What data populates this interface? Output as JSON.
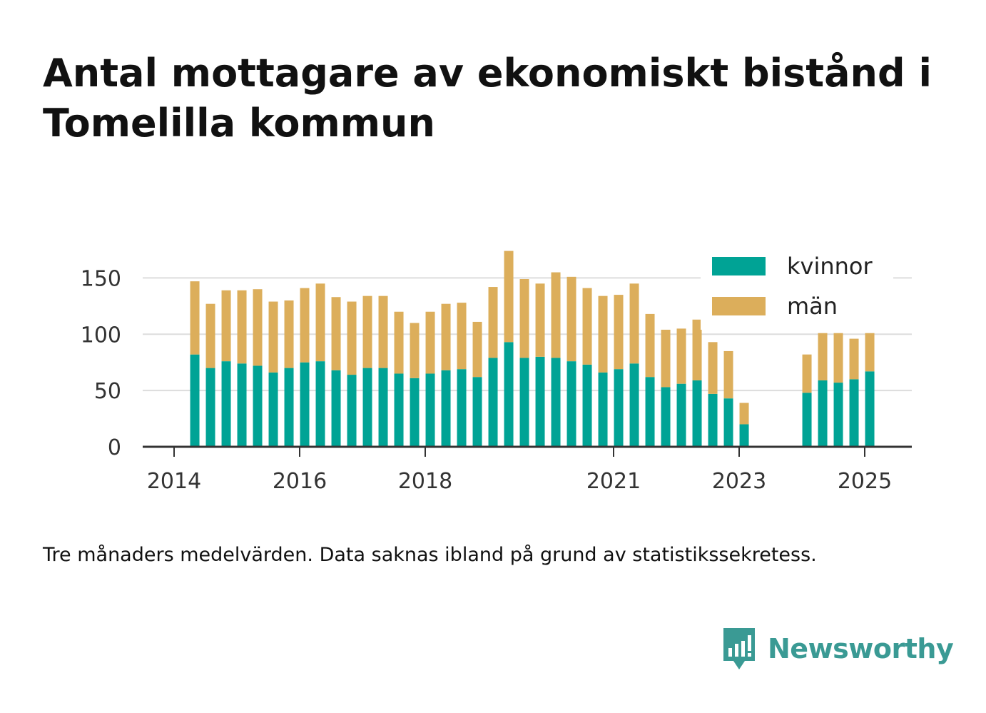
{
  "title": "Antal mottagare av ekonomiskt bistånd i Tomelilla kommun",
  "caption": "Tre månaders medelvärden. Data saknas ibland på grund av statistikssekretess.",
  "brand": {
    "name": "Newsworthy",
    "icon": "newsworthy-logo-icon",
    "color": "#3a9a94"
  },
  "colors": {
    "kvinnor": "#00a395",
    "man": "#dcae5b",
    "grid": "#dddddd",
    "axis": "#333333"
  },
  "chart_data": {
    "type": "bar",
    "stacked": true,
    "ylim": [
      0,
      175
    ],
    "yticks": [
      0,
      50,
      100,
      150
    ],
    "xticks": [
      {
        "label": "2014",
        "at": 2014.0
      },
      {
        "label": "2016",
        "at": 2016.0
      },
      {
        "label": "2018",
        "at": 2018.0
      },
      {
        "label": "2021",
        "at": 2021.0
      },
      {
        "label": "2023",
        "at": 2023.0
      },
      {
        "label": "2025",
        "at": 2025.0
      }
    ],
    "xlim": [
      2013.5,
      2025.75
    ],
    "grid": true,
    "legend_position": "top-right",
    "series": [
      {
        "name": "kvinnor",
        "color": "#00a395",
        "x": [
          2014.33,
          2014.58,
          2014.83,
          2015.08,
          2015.33,
          2015.58,
          2015.83,
          2016.08,
          2016.33,
          2016.58,
          2016.83,
          2017.08,
          2017.33,
          2017.58,
          2017.83,
          2018.08,
          2018.33,
          2018.58,
          2018.83,
          2019.08,
          2019.33,
          2019.58,
          2019.83,
          2020.08,
          2020.33,
          2020.58,
          2020.83,
          2021.08,
          2021.33,
          2021.58,
          2021.83,
          2022.08,
          2022.33,
          2022.58,
          2022.83,
          2023.08,
          2024.08,
          2024.33,
          2024.58,
          2024.83,
          2025.08
        ],
        "values": [
          82,
          70,
          76,
          74,
          72,
          66,
          70,
          75,
          76,
          68,
          64,
          70,
          70,
          65,
          61,
          65,
          68,
          69,
          62,
          79,
          93,
          79,
          80,
          79,
          76,
          73,
          66,
          69,
          74,
          62,
          53,
          56,
          59,
          47,
          43,
          20,
          48,
          59,
          57,
          60,
          67
        ]
      },
      {
        "name": "män",
        "color": "#dcae5b",
        "x": [
          2014.33,
          2014.58,
          2014.83,
          2015.08,
          2015.33,
          2015.58,
          2015.83,
          2016.08,
          2016.33,
          2016.58,
          2016.83,
          2017.08,
          2017.33,
          2017.58,
          2017.83,
          2018.08,
          2018.33,
          2018.58,
          2018.83,
          2019.08,
          2019.33,
          2019.58,
          2019.83,
          2020.08,
          2020.33,
          2020.58,
          2020.83,
          2021.08,
          2021.33,
          2021.58,
          2021.83,
          2022.08,
          2022.33,
          2022.58,
          2022.83,
          2023.08,
          2024.08,
          2024.33,
          2024.58,
          2024.83,
          2025.08
        ],
        "values": [
          65,
          57,
          63,
          65,
          68,
          63,
          60,
          66,
          69,
          65,
          65,
          64,
          64,
          55,
          49,
          55,
          59,
          59,
          49,
          63,
          81,
          70,
          65,
          76,
          75,
          68,
          68,
          66,
          71,
          56,
          51,
          49,
          54,
          46,
          42,
          19,
          34,
          42,
          44,
          36,
          34
        ]
      }
    ]
  }
}
